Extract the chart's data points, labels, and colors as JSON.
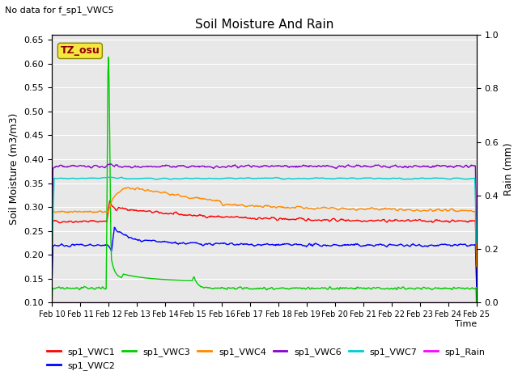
{
  "title": "Soil Moisture And Rain",
  "note": "No data for f_sp1_VWC5",
  "xlabel": "Time",
  "ylabel_left": "Soil Moisture (m3/m3)",
  "ylabel_right": "Rain (mm)",
  "annotation": "TZ_osu",
  "ylim_left": [
    0.1,
    0.66
  ],
  "ylim_right": [
    0.0,
    1.0
  ],
  "bg_color": "#e8e8e8",
  "series_colors": {
    "sp1_VWC1": "#ff0000",
    "sp1_VWC2": "#0000ff",
    "sp1_VWC3": "#00cc00",
    "sp1_VWC4": "#ff8800",
    "sp1_VWC6": "#8800cc",
    "sp1_VWC7": "#00cccc",
    "sp1_Rain": "#ff00ff"
  },
  "xtick_labels": [
    "Feb 10",
    "Feb 11",
    "Feb 12",
    "Feb 13",
    "Feb 14",
    "Feb 15",
    "Feb 16",
    "Feb 17",
    "Feb 18",
    "Feb 19",
    "Feb 20",
    "Feb 21",
    "Feb 22",
    "Feb 23",
    "Feb 24",
    "Feb 25"
  ],
  "yticks_left": [
    0.1,
    0.15,
    0.2,
    0.25,
    0.3,
    0.35,
    0.4,
    0.45,
    0.5,
    0.55,
    0.6,
    0.65
  ],
  "yticks_right": [
    0.0,
    0.2,
    0.4,
    0.6,
    0.8,
    1.0
  ]
}
